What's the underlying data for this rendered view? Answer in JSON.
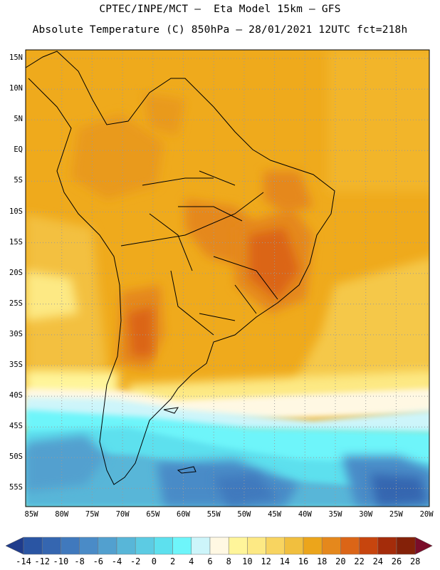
{
  "header": {
    "line1": "CPTEC/INPE/MCT –  Eta Model 15km – GFS",
    "line2": "Absolute Temperature (C) 850hPa – 28/01/2021 12UTC fct=218h"
  },
  "map": {
    "lat_labels": [
      "15N",
      "10N",
      "5N",
      "EQ",
      "5S",
      "10S",
      "15S",
      "20S",
      "25S",
      "30S",
      "35S",
      "40S",
      "45S",
      "50S",
      "55S"
    ],
    "lon_labels": [
      "85W",
      "80W",
      "75W",
      "70W",
      "65W",
      "60W",
      "55W",
      "50W",
      "45W",
      "40W",
      "35W",
      "30W",
      "25W",
      "20W"
    ],
    "lat_range": [
      15,
      -58
    ],
    "lon_range": [
      -85,
      -20
    ]
  },
  "legend": {
    "values": [
      "-14",
      "-12",
      "-10",
      "-8",
      "-6",
      "-4",
      "-2",
      "0",
      "2",
      "4",
      "6",
      "8",
      "10",
      "12",
      "14",
      "16",
      "18",
      "20",
      "22",
      "24",
      "26",
      "28"
    ],
    "colors": [
      "#1f3c8c",
      "#2a55a3",
      "#3566b0",
      "#4079bd",
      "#4a8bc7",
      "#52a0cf",
      "#58b6d8",
      "#5ccbe3",
      "#5de0ee",
      "#6ef5fa",
      "#cdf5fa",
      "#fff8e3",
      "#fff59a",
      "#fde984",
      "#f8d460",
      "#f1bf3e",
      "#eca51b",
      "#e5881c",
      "#db6517",
      "#c7450e",
      "#a42c0a",
      "#842108",
      "#7a0d2a"
    ]
  }
}
